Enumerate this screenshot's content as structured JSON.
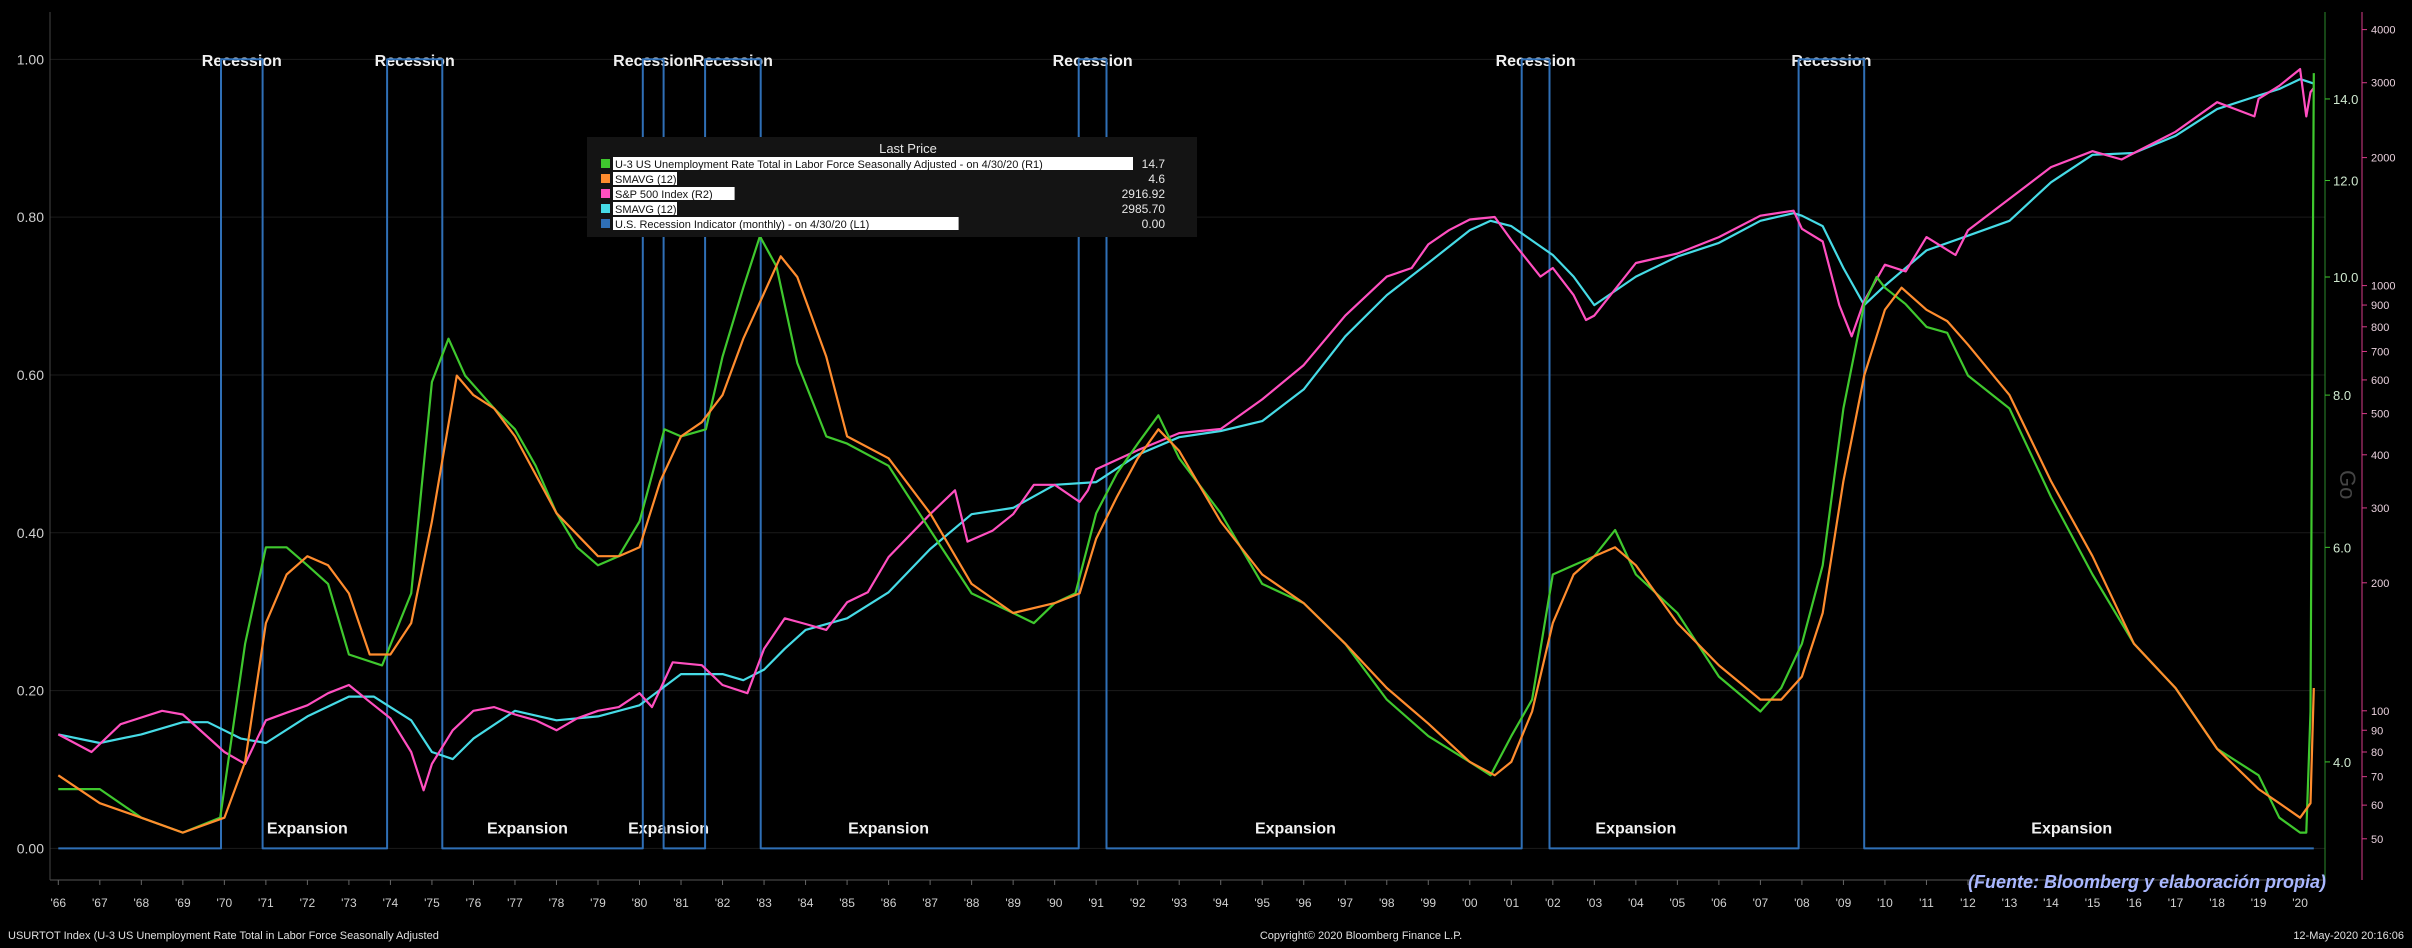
{
  "colors": {
    "background": "#000000",
    "recession": "#2f6fb6",
    "unemployment": "#3fc82e",
    "unemployment_smavg": "#ff8c2e",
    "sp500": "#ff4fc0",
    "sp500_smavg": "#46dbe6",
    "left_axis": "#cfcfcf",
    "right_axis_unemp": "#3fc82e",
    "right_axis_sp": "#d83b8a",
    "footer": "#e0e0e0",
    "source_note": "#a9b7ff"
  },
  "legend": {
    "header": "Last Price",
    "items": [
      {
        "label": "U-3 US Unemployment Rate Total in Labor Force Seasonally Adjusted -  on 4/30/20  (R1)",
        "value": "14.7",
        "color": "#3fc82e"
      },
      {
        "label": "SMAVG (12)",
        "value": "4.6",
        "color": "#ff8c2e"
      },
      {
        "label": "S&P 500 Index  (R2)",
        "value": "2916.92",
        "color": "#ff4fc0"
      },
      {
        "label": "SMAVG (12)",
        "value": "2985.70",
        "color": "#46dbe6"
      },
      {
        "label": "U.S. Recession Indicator (monthly) -  on 4/30/20  (L1)",
        "value": "0.00",
        "color": "#2f6fb6"
      }
    ]
  },
  "footer": {
    "left": "USURTOT Index (U-3 US Unemployment Rate Total in Labor Force Seasonally Adjusted",
    "center": "Copyright© 2020 Bloomberg Finance L.P.",
    "right": "12-May-2020 20:16:06"
  },
  "source_note": "(Fuente: Bloomberg y elaboración propia)",
  "side_label": "Go",
  "recession_label": "Recession",
  "expansion_label": "Expansion",
  "chart_data": {
    "type": "line",
    "x_range": [
      1965.8,
      2020.6
    ],
    "x_tick_labels": [
      "'66",
      "'67",
      "'68",
      "'69",
      "'70",
      "'71",
      "'72",
      "'73",
      "'74",
      "'75",
      "'76",
      "'77",
      "'78",
      "'79",
      "'80",
      "'81",
      "'82",
      "'83",
      "'84",
      "'85",
      "'86",
      "'87",
      "'88",
      "'89",
      "'90",
      "'91",
      "'92",
      "'93",
      "'94",
      "'95",
      "'96",
      "'97",
      "'98",
      "'99",
      "'00",
      "'01",
      "'02",
      "'03",
      "'04",
      "'05",
      "'06",
      "'07",
      "'08",
      "'09",
      "'10",
      "'11",
      "'12",
      "'13",
      "'14",
      "'15",
      "'16",
      "'17",
      "'18",
      "'19",
      "'20"
    ],
    "left_axis": {
      "name": "L1",
      "range": [
        -0.04,
        1.06
      ],
      "ticks": [
        0.0,
        0.2,
        0.4,
        0.6,
        0.8,
        1.0
      ],
      "tick_labels": [
        "0.00",
        "0.20",
        "0.40",
        "0.60",
        "0.80",
        "1.00"
      ]
    },
    "right_axis_1": {
      "name": "R1",
      "scale": "log",
      "range": [
        3.2,
        16.5
      ],
      "ticks": [
        4,
        6,
        8,
        10,
        12,
        14
      ],
      "tick_labels": [
        "4.0",
        "6.0",
        "8.0",
        "10.0",
        "12.0",
        "14.0"
      ]
    },
    "right_axis_2": {
      "name": "R2",
      "scale": "log",
      "range": [
        40,
        4400
      ],
      "ticks": [
        50,
        60,
        70,
        80,
        90,
        100,
        200,
        300,
        400,
        500,
        600,
        700,
        800,
        900,
        1000,
        2000,
        3000,
        4000
      ],
      "tick_labels": [
        "50",
        "60",
        "70",
        "80",
        "90",
        "100",
        "200",
        "300",
        "400",
        "500",
        "600",
        "700",
        "800",
        "900",
        "1000",
        "2000",
        "3000",
        "4000"
      ]
    },
    "recessions": [
      [
        1969.92,
        1970.92
      ],
      [
        1973.92,
        1975.25
      ],
      [
        1980.08,
        1980.58
      ],
      [
        1981.58,
        1982.92
      ],
      [
        1990.58,
        1991.25
      ],
      [
        2001.25,
        2001.92
      ],
      [
        2007.92,
        2009.5
      ]
    ],
    "expansion_marks": [
      1972.0,
      1977.3,
      1980.7,
      1986.0,
      1995.8,
      2004.0,
      2014.5
    ],
    "series": [
      {
        "name": "U-3 US Unemployment Rate Total in Labor Force Seasonally Adjusted",
        "axis": "R1",
        "x": [
          1966.0,
          1967.0,
          1968.0,
          1969.0,
          1969.9,
          1970.5,
          1971.0,
          1971.5,
          1972.0,
          1972.5,
          1973.0,
          1973.8,
          1974.5,
          1975.0,
          1975.4,
          1975.8,
          1976.5,
          1977.0,
          1977.5,
          1978.0,
          1978.5,
          1979.0,
          1979.5,
          1980.0,
          1980.6,
          1981.0,
          1981.6,
          1982.0,
          1982.5,
          1982.9,
          1983.3,
          1983.8,
          1984.5,
          1985.0,
          1986.0,
          1987.0,
          1988.0,
          1989.0,
          1989.5,
          1990.0,
          1990.5,
          1991.0,
          1991.5,
          1992.0,
          1992.5,
          1993.0,
          1994.0,
          1995.0,
          1996.0,
          1997.0,
          1998.0,
          1999.0,
          2000.0,
          2000.5,
          2001.0,
          2001.5,
          2002.0,
          2002.5,
          2003.0,
          2003.5,
          2004.0,
          2005.0,
          2006.0,
          2007.0,
          2007.5,
          2008.0,
          2008.5,
          2009.0,
          2009.5,
          2009.8,
          2010.0,
          2010.5,
          2011.0,
          2011.5,
          2012.0,
          2013.0,
          2014.0,
          2015.0,
          2016.0,
          2017.0,
          2018.0,
          2019.0,
          2019.5,
          2020.0,
          2020.15,
          2020.25,
          2020.33
        ],
        "y": [
          3.8,
          3.8,
          3.6,
          3.5,
          3.6,
          5.0,
          6.0,
          6.0,
          5.8,
          5.6,
          4.9,
          4.8,
          5.5,
          8.2,
          8.9,
          8.3,
          7.8,
          7.5,
          7.0,
          6.4,
          6.0,
          5.8,
          5.9,
          6.3,
          7.5,
          7.4,
          7.5,
          8.6,
          9.8,
          10.8,
          10.2,
          8.5,
          7.4,
          7.3,
          7.0,
          6.2,
          5.5,
          5.3,
          5.2,
          5.4,
          5.5,
          6.4,
          6.9,
          7.3,
          7.7,
          7.1,
          6.4,
          5.6,
          5.4,
          5.0,
          4.5,
          4.2,
          4.0,
          3.9,
          4.2,
          4.5,
          5.7,
          5.8,
          5.9,
          6.2,
          5.7,
          5.3,
          4.7,
          4.4,
          4.6,
          5.0,
          5.8,
          7.8,
          9.5,
          10.0,
          9.8,
          9.5,
          9.1,
          9.0,
          8.3,
          7.8,
          6.6,
          5.7,
          5.0,
          4.6,
          4.1,
          3.9,
          3.6,
          3.5,
          3.5,
          4.4,
          14.7
        ]
      },
      {
        "name": "SMAVG (12)",
        "axis": "R1",
        "x": [
          1966.0,
          1967.0,
          1968.0,
          1969.0,
          1970.0,
          1970.5,
          1971.0,
          1971.5,
          1972.0,
          1972.5,
          1973.0,
          1973.5,
          1974.0,
          1974.5,
          1975.0,
          1975.6,
          1976.0,
          1976.5,
          1977.0,
          1978.0,
          1979.0,
          1979.5,
          1980.0,
          1980.5,
          1981.0,
          1981.5,
          1982.0,
          1982.5,
          1983.0,
          1983.4,
          1983.8,
          1984.5,
          1985.0,
          1986.0,
          1987.0,
          1988.0,
          1989.0,
          1990.0,
          1990.6,
          1991.0,
          1991.5,
          1992.0,
          1992.5,
          1993.0,
          1994.0,
          1995.0,
          1996.0,
          1997.0,
          1998.0,
          1999.0,
          2000.0,
          2000.6,
          2001.0,
          2001.5,
          2002.0,
          2002.5,
          2003.0,
          2003.5,
          2004.0,
          2005.0,
          2006.0,
          2007.0,
          2007.5,
          2008.0,
          2008.5,
          2009.0,
          2009.5,
          2010.0,
          2010.4,
          2011.0,
          2011.5,
          2012.0,
          2013.0,
          2014.0,
          2015.0,
          2016.0,
          2017.0,
          2018.0,
          2019.0,
          2019.5,
          2020.0,
          2020.25,
          2020.33
        ],
        "y": [
          3.9,
          3.7,
          3.6,
          3.5,
          3.6,
          4.0,
          5.2,
          5.7,
          5.9,
          5.8,
          5.5,
          4.9,
          4.9,
          5.2,
          6.3,
          8.3,
          8.0,
          7.8,
          7.4,
          6.4,
          5.9,
          5.9,
          6.0,
          6.8,
          7.4,
          7.6,
          8.0,
          8.9,
          9.7,
          10.4,
          10.0,
          8.6,
          7.4,
          7.1,
          6.4,
          5.6,
          5.3,
          5.4,
          5.5,
          6.1,
          6.6,
          7.1,
          7.5,
          7.2,
          6.3,
          5.7,
          5.4,
          5.0,
          4.6,
          4.3,
          4.0,
          3.9,
          4.0,
          4.4,
          5.2,
          5.7,
          5.9,
          6.0,
          5.8,
          5.2,
          4.8,
          4.5,
          4.5,
          4.7,
          5.3,
          6.8,
          8.3,
          9.4,
          9.8,
          9.4,
          9.2,
          8.8,
          8.0,
          6.8,
          5.9,
          5.0,
          4.6,
          4.1,
          3.8,
          3.7,
          3.6,
          3.7,
          4.6
        ]
      },
      {
        "name": "S&P 500 Index",
        "axis": "R2",
        "x": [
          1966.0,
          1966.8,
          1967.5,
          1968.5,
          1969.0,
          1970.0,
          1970.5,
          1971.0,
          1971.5,
          1972.0,
          1972.5,
          1973.0,
          1973.5,
          1974.0,
          1974.5,
          1974.8,
          1975.0,
          1975.5,
          1976.0,
          1976.5,
          1977.0,
          1977.5,
          1978.0,
          1978.5,
          1979.0,
          1979.5,
          1980.0,
          1980.3,
          1980.8,
          1981.5,
          1982.0,
          1982.6,
          1983.0,
          1983.5,
          1984.0,
          1984.5,
          1985.0,
          1985.5,
          1986.0,
          1987.0,
          1987.6,
          1987.9,
          1988.5,
          1989.0,
          1989.5,
          1990.0,
          1990.6,
          1990.8,
          1991.0,
          1992.0,
          1993.0,
          1994.0,
          1995.0,
          1996.0,
          1997.0,
          1998.0,
          1998.6,
          1999.0,
          1999.5,
          2000.0,
          2000.6,
          2001.0,
          2001.7,
          2002.0,
          2002.5,
          2002.8,
          2003.0,
          2004.0,
          2005.0,
          2006.0,
          2007.0,
          2007.8,
          2008.0,
          2008.5,
          2008.9,
          2009.2,
          2009.5,
          2010.0,
          2010.5,
          2011.0,
          2011.7,
          2012.0,
          2013.0,
          2014.0,
          2015.0,
          2015.7,
          2016.0,
          2017.0,
          2018.0,
          2018.9,
          2019.0,
          2019.5,
          2020.0,
          2020.15,
          2020.25,
          2020.33
        ],
        "y": [
          88,
          80,
          93,
          100,
          98,
          80,
          75,
          95,
          99,
          103,
          110,
          115,
          105,
          96,
          80,
          65,
          75,
          90,
          100,
          102,
          98,
          95,
          90,
          96,
          100,
          102,
          110,
          102,
          130,
          128,
          115,
          110,
          140,
          165,
          160,
          155,
          180,
          190,
          230,
          290,
          330,
          250,
          265,
          290,
          340,
          340,
          310,
          330,
          370,
          410,
          450,
          460,
          540,
          650,
          850,
          1050,
          1100,
          1250,
          1350,
          1430,
          1450,
          1280,
          1050,
          1100,
          950,
          830,
          850,
          1130,
          1190,
          1300,
          1460,
          1500,
          1360,
          1270,
          900,
          760,
          920,
          1120,
          1080,
          1300,
          1180,
          1350,
          1600,
          1900,
          2070,
          1980,
          2050,
          2300,
          2700,
          2500,
          2750,
          2950,
          3230,
          2500,
          2850,
          2917
        ]
      },
      {
        "name": "SMAVG (12)",
        "axis": "R2",
        "x": [
          1966.0,
          1967.0,
          1968.0,
          1969.0,
          1969.6,
          1970.4,
          1971.0,
          1972.0,
          1973.0,
          1973.6,
          1974.5,
          1975.0,
          1975.5,
          1976.0,
          1977.0,
          1978.0,
          1979.0,
          1980.0,
          1981.0,
          1982.0,
          1982.5,
          1983.0,
          1983.5,
          1984.0,
          1985.0,
          1986.0,
          1987.0,
          1988.0,
          1989.0,
          1990.0,
          1991.0,
          1992.0,
          1993.0,
          1994.0,
          1995.0,
          1996.0,
          1997.0,
          1998.0,
          1999.0,
          2000.0,
          2000.5,
          2001.0,
          2002.0,
          2002.5,
          2003.0,
          2004.0,
          2005.0,
          2006.0,
          2007.0,
          2007.8,
          2008.0,
          2008.5,
          2009.0,
          2009.5,
          2010.0,
          2011.0,
          2012.0,
          2013.0,
          2014.0,
          2015.0,
          2016.0,
          2017.0,
          2018.0,
          2019.0,
          2019.5,
          2020.0,
          2020.33
        ],
        "y": [
          88,
          84,
          88,
          94,
          94,
          86,
          84,
          97,
          108,
          108,
          95,
          80,
          77,
          86,
          100,
          95,
          97,
          103,
          122,
          122,
          118,
          125,
          140,
          155,
          165,
          190,
          240,
          290,
          300,
          340,
          345,
          400,
          440,
          455,
          480,
          570,
          760,
          950,
          1130,
          1350,
          1420,
          1380,
          1180,
          1050,
          900,
          1050,
          1170,
          1260,
          1420,
          1480,
          1460,
          1380,
          1100,
          900,
          1000,
          1210,
          1310,
          1420,
          1750,
          2030,
          2050,
          2250,
          2600,
          2800,
          2900,
          3060,
          2986
        ]
      },
      {
        "name": "U.S. Recession Indicator (monthly)",
        "axis": "L1",
        "x": [
          1966.0,
          1969.92,
          1969.92,
          1970.92,
          1970.92,
          1973.92,
          1973.92,
          1975.25,
          1975.25,
          1980.08,
          1980.08,
          1980.58,
          1980.58,
          1981.58,
          1981.58,
          1982.92,
          1982.92,
          1990.58,
          1990.58,
          1991.25,
          1991.25,
          2001.25,
          2001.25,
          2001.92,
          2001.92,
          2007.92,
          2007.92,
          2009.5,
          2009.5,
          2020.33
        ],
        "y": [
          0,
          0,
          1,
          1,
          0,
          0,
          1,
          1,
          0,
          0,
          1,
          1,
          0,
          0,
          1,
          1,
          0,
          0,
          1,
          1,
          0,
          0,
          1,
          1,
          0,
          0,
          1,
          1,
          0,
          0
        ]
      }
    ]
  }
}
